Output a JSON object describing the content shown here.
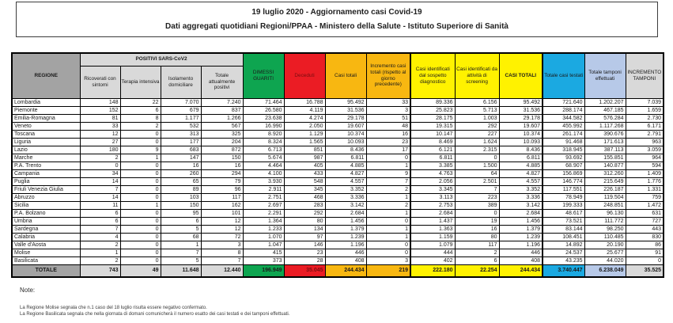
{
  "report": {
    "title_line1": "19 luglio 2020 - Aggiornamento casi Covid-19",
    "title_line2": "Dati aggregati quotidiani Regioni/PPAA - Ministero della Salute - Istituto Superiore di Sanità"
  },
  "table": {
    "region_header": "REGIONE",
    "positivi_group": "POSITIVI SARS-CoV2",
    "subcols": [
      "Ricoverati con sintomi",
      "Terapia intensiva",
      "Isolamento domiciliare",
      "Totale attualmente positivi"
    ],
    "cols": [
      "DIMESSI GUARITI",
      "Deceduti",
      "Casi totali",
      "Incremento casi totali (rispetto al giorno precedente)",
      "Casi identificati dal sospetto diagnostico",
      "Casi identificati da attività di screening",
      "CASI TOTALI",
      "Totale casi testati",
      "Totale tamponi effettuati",
      "INCREMENTO TAMPONI"
    ],
    "rows": [
      {
        "region": "Lombardia",
        "values": [
          "148",
          "22",
          "7.070",
          "7.240",
          "71.464",
          "16.788",
          "95.492",
          "33",
          "89.336",
          "6.156",
          "95.492",
          "721.640",
          "1.202.207",
          "7.039"
        ]
      },
      {
        "region": "Piemonte",
        "values": [
          "152",
          "6",
          "679",
          "837",
          "26.580",
          "4.119",
          "31.536",
          "3",
          "25.823",
          "5.713",
          "31.536",
          "288.174",
          "467.185",
          "1.659"
        ]
      },
      {
        "region": "Emilia-Romagna",
        "values": [
          "81",
          "8",
          "1.177",
          "1.266",
          "23.638",
          "4.274",
          "29.178",
          "51",
          "28.175",
          "1.003",
          "29.178",
          "344.582",
          "576.284",
          "2.730"
        ]
      },
      {
        "region": "Veneto",
        "values": [
          "33",
          "2",
          "532",
          "567",
          "16.990",
          "2.050",
          "19.607",
          "48",
          "19.315",
          "292",
          "19.607",
          "455.992",
          "1.117.268",
          "6.171"
        ]
      },
      {
        "region": "Toscana",
        "values": [
          "12",
          "0",
          "313",
          "325",
          "8.920",
          "1.129",
          "10.374",
          "16",
          "10.147",
          "227",
          "10.374",
          "261.174",
          "390.676",
          "2.791"
        ]
      },
      {
        "region": "Liguria",
        "values": [
          "27",
          "0",
          "177",
          "204",
          "8.324",
          "1.565",
          "10.093",
          "23",
          "8.469",
          "1.624",
          "10.093",
          "91.468",
          "171.613",
          "963"
        ]
      },
      {
        "region": "Lazio",
        "values": [
          "180",
          "9",
          "683",
          "872",
          "6.713",
          "851",
          "8.436",
          "17",
          "6.121",
          "2.315",
          "8.436",
          "318.945",
          "387.113",
          "3.059"
        ]
      },
      {
        "region": "Marche",
        "values": [
          "2",
          "1",
          "147",
          "150",
          "5.674",
          "987",
          "6.811",
          "0",
          "6.811",
          "0",
          "6.811",
          "93.692",
          "155.851",
          "964"
        ]
      },
      {
        "region": "P.A. Trento",
        "values": [
          "0",
          "0",
          "16",
          "16",
          "4.464",
          "405",
          "4.885",
          "1",
          "3.385",
          "1.500",
          "4.885",
          "68.907",
          "140.877",
          "594"
        ]
      },
      {
        "region": "Campania",
        "values": [
          "34",
          "0",
          "260",
          "294",
          "4.100",
          "433",
          "4.827",
          "9",
          "4.763",
          "64",
          "4.827",
          "156.869",
          "312.260",
          "1.409"
        ]
      },
      {
        "region": "Puglia",
        "values": [
          "14",
          "0",
          "65",
          "79",
          "3.930",
          "548",
          "4.557",
          "7",
          "2.056",
          "2.501",
          "4.557",
          "146.774",
          "215.649",
          "1.776"
        ]
      },
      {
        "region": "Friuli Venezia Giulia",
        "values": [
          "7",
          "0",
          "89",
          "96",
          "2.911",
          "345",
          "3.352",
          "2",
          "3.345",
          "7",
          "3.352",
          "117.551",
          "226.187",
          "1.331"
        ]
      },
      {
        "region": "Abruzzo",
        "values": [
          "14",
          "0",
          "103",
          "117",
          "2.751",
          "468",
          "3.336",
          "1",
          "3.113",
          "223",
          "3.336",
          "78.949",
          "119.504",
          "759"
        ]
      },
      {
        "region": "Sicilia",
        "values": [
          "11",
          "1",
          "150",
          "162",
          "2.697",
          "283",
          "3.142",
          "2",
          "2.753",
          "389",
          "3.142",
          "199.333",
          "248.851",
          "1.472"
        ]
      },
      {
        "region": "P.A. Bolzano",
        "values": [
          "6",
          "0",
          "95",
          "101",
          "2.291",
          "292",
          "2.684",
          "1",
          "2.684",
          "0",
          "2.684",
          "48.617",
          "96.130",
          "631"
        ]
      },
      {
        "region": "Umbria",
        "values": [
          "6",
          "0",
          "6",
          "12",
          "1.364",
          "80",
          "1.456",
          "0",
          "1.437",
          "19",
          "1.456",
          "73.521",
          "111.772",
          "727"
        ]
      },
      {
        "region": "Sardegna",
        "values": [
          "7",
          "0",
          "5",
          "12",
          "1.233",
          "134",
          "1.379",
          "1",
          "1.363",
          "16",
          "1.379",
          "83.144",
          "98.250",
          "443"
        ]
      },
      {
        "region": "Calabria",
        "values": [
          "4",
          "0",
          "68",
          "72",
          "1.070",
          "97",
          "1.239",
          "1",
          "1.159",
          "80",
          "1.239",
          "108.451",
          "110.485",
          "830"
        ]
      },
      {
        "region": "Valle d'Aosta",
        "values": [
          "2",
          "0",
          "1",
          "3",
          "1.047",
          "146",
          "1.196",
          "0",
          "1.079",
          "117",
          "1.196",
          "14.892",
          "20.190",
          "86"
        ]
      },
      {
        "region": "Molise",
        "values": [
          "1",
          "0",
          "7",
          "8",
          "415",
          "23",
          "446",
          "0",
          "444",
          "2",
          "446",
          "24.537",
          "25.677",
          "91"
        ]
      },
      {
        "region": "Basilicata",
        "values": [
          "2",
          "0",
          "5",
          "7",
          "373",
          "28",
          "408",
          "3",
          "402",
          "6",
          "408",
          "43.235",
          "44.020",
          "0"
        ]
      }
    ],
    "total": {
      "label": "TOTALE",
      "values": [
        "743",
        "49",
        "11.648",
        "12.440",
        "196.949",
        "35.045",
        "244.434",
        "219",
        "222.180",
        "22.254",
        "244.434",
        "3.740.447",
        "6.238.049",
        "35.525"
      ]
    }
  },
  "notes": {
    "title": "Note:",
    "lines": [
      "La Regione Molise segnala che n.1 caso del 18 luglio risulta essere negativo confermato.",
      "La Regione Basilicata segnala che nella giornata di domani comunicherà il numero esatto dei casi testati e dei tamponi effettuati."
    ]
  },
  "colors": {
    "green": "#0ea550",
    "red": "#eb1c24",
    "amber": "#f8b711",
    "yellow": "#fff200",
    "cyan": "#1ba9e1",
    "lblue": "#b7c9e8",
    "lgray": "#d9d9d9",
    "mgray": "#a3a3a3",
    "dred": "#7a0d10"
  }
}
